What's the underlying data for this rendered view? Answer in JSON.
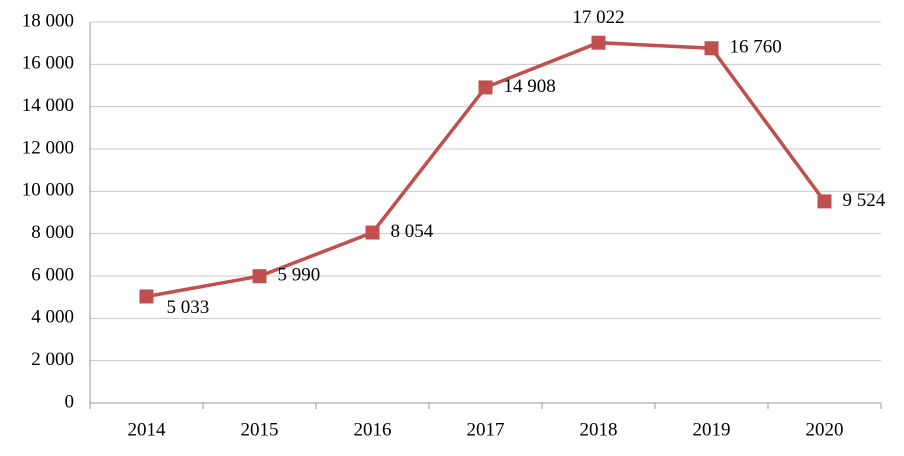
{
  "chart_data": {
    "type": "line",
    "categories": [
      "2014",
      "2015",
      "2016",
      "2017",
      "2018",
      "2019",
      "2020"
    ],
    "values": [
      5033,
      5990,
      8054,
      14908,
      17022,
      16760,
      9524
    ],
    "value_labels": [
      "5 033",
      "5 990",
      "8 054",
      "14 908",
      "17 022",
      "16 760",
      "9 524"
    ],
    "color": "#c0504d",
    "ylim": [
      0,
      18000
    ],
    "yticks": [
      0,
      {
        "value": 2000,
        "label": "2 000"
      },
      {
        "value": 4000,
        "label": "4 000"
      },
      {
        "value": 6000,
        "label": "6 000"
      },
      {
        "value": 8000,
        "label": "8 000"
      },
      {
        "value": 10000,
        "label": "10 000"
      },
      {
        "value": 12000,
        "label": "12 000"
      },
      {
        "value": 14000,
        "label": "14 000"
      },
      {
        "value": 16000,
        "label": "16 000"
      },
      {
        "value": 18000,
        "label": "18 000"
      }
    ],
    "grid": true
  }
}
